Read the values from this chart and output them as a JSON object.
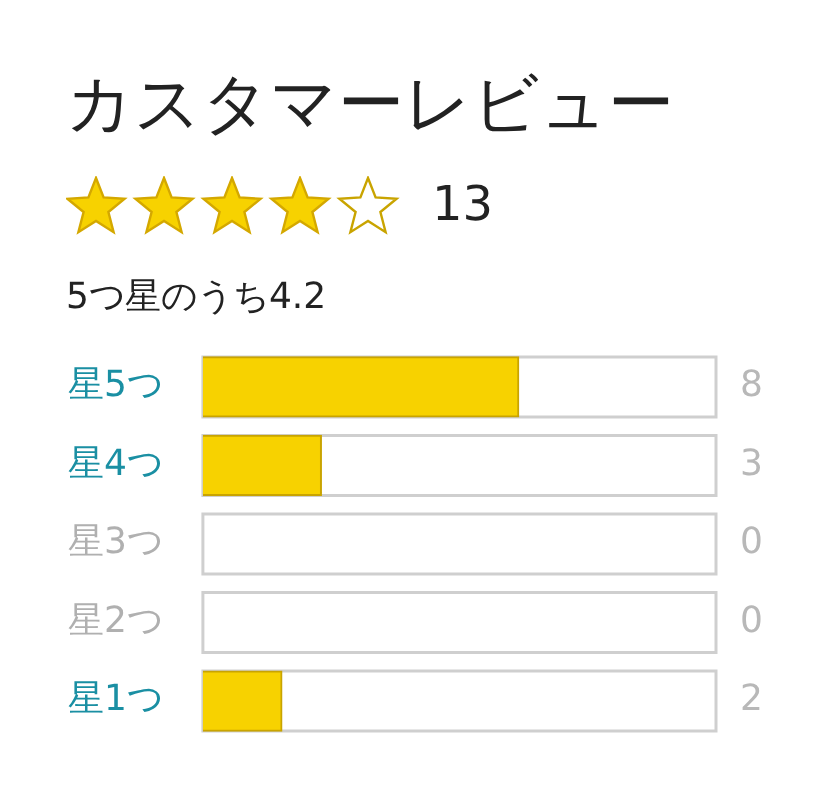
{
  "chart_data": {
    "type": "bar",
    "orientation": "horizontal",
    "title": "カスタマーレビュー",
    "annotations": [
      "13",
      "5つ星のうち4.2"
    ],
    "categories": [
      "星5つ",
      "星4つ",
      "星3つ",
      "星2つ",
      "星1つ"
    ],
    "values": [
      8,
      3,
      0,
      0,
      2
    ],
    "color": "#f7d200",
    "xlim": [
      0,
      13
    ],
    "tick_labels": "y",
    "data_labels": true
  }
}
